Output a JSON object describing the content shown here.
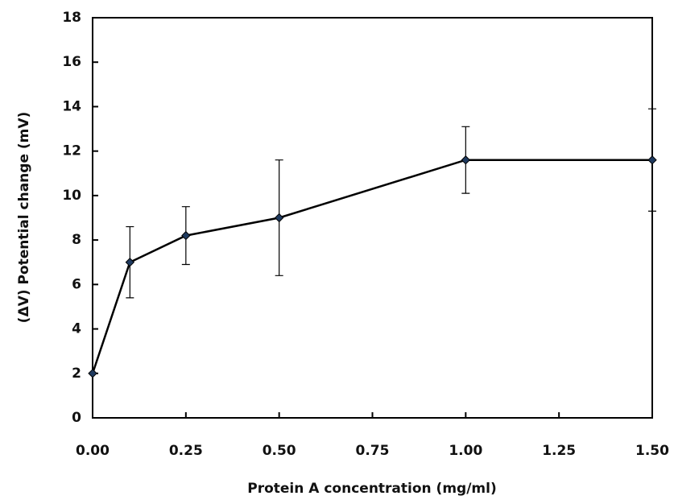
{
  "chart_data": {
    "type": "line",
    "x_label": "Protein A concentration (mg/ml)",
    "y_label": "(ΔV) Potential change (mV)",
    "x": [
      0,
      0.1,
      0.25,
      0.5,
      1.0,
      1.5
    ],
    "series": [
      {
        "color": "#000000",
        "marker_color": "#1f3a5f",
        "values": [
          2.0,
          7.0,
          8.2,
          9.0,
          11.6,
          11.6
        ],
        "errors": [
          0,
          1.6,
          1.3,
          2.6,
          1.5,
          2.3
        ]
      }
    ],
    "xlim": [
      0,
      1.5
    ],
    "xticks": [
      {
        "value": 0,
        "label": "0.00"
      },
      {
        "value": 0.25,
        "label": "0.25"
      },
      {
        "value": 0.5,
        "label": "0.50"
      },
      {
        "value": 0.75,
        "label": "0.75"
      },
      {
        "value": 1.0,
        "label": "1.00"
      },
      {
        "value": 1.25,
        "label": "1.25"
      },
      {
        "value": 1.5,
        "label": "1.50"
      }
    ],
    "ylim": [
      0,
      18
    ],
    "yticks": [
      0,
      2,
      4,
      6,
      8,
      10,
      12,
      14,
      16,
      18
    ]
  }
}
